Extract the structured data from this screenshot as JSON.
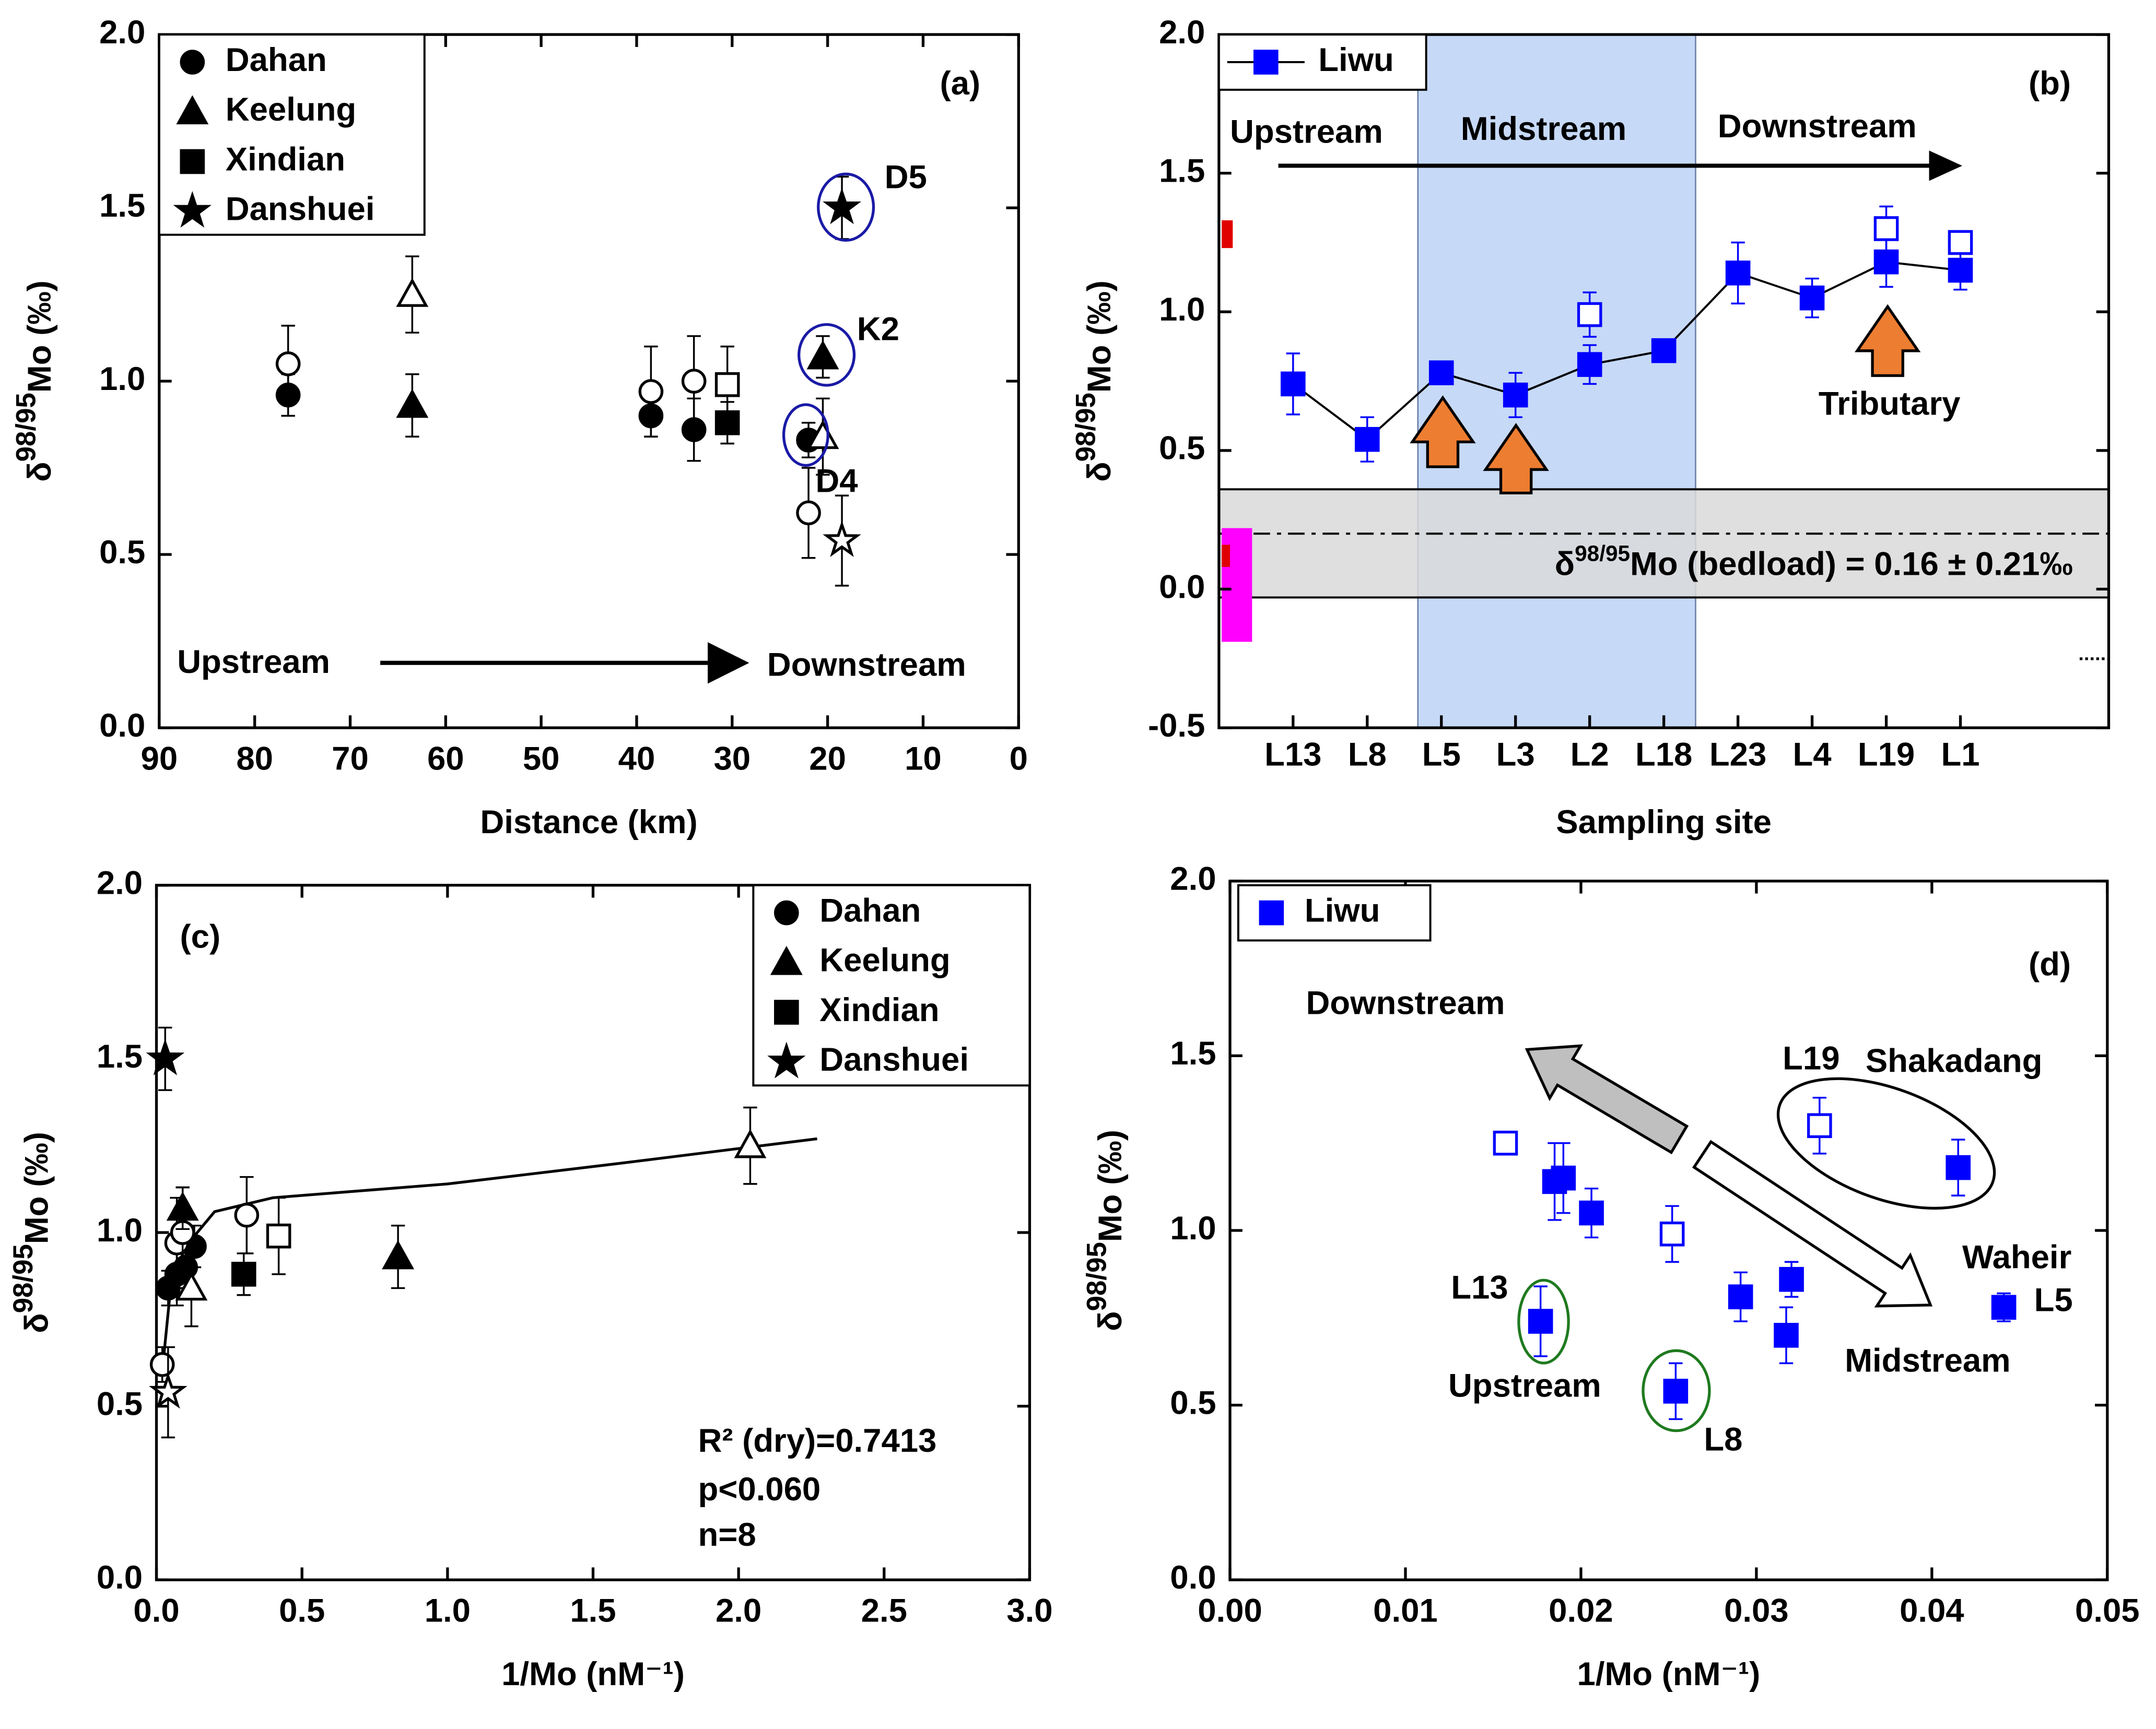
{
  "chart_data": [
    {
      "type": "scatter",
      "title": "(a)",
      "x_label": "Distance (km)",
      "y_label": {
        "prefix": "δ",
        "sup": "98/95",
        "main": "Mo (‰)"
      },
      "xlim": [
        90,
        0
      ],
      "xticks": [
        90,
        80,
        70,
        60,
        50,
        40,
        30,
        20,
        10,
        0
      ],
      "ylim": [
        0,
        2
      ],
      "yticks": [
        {
          "value": 0,
          "label": "0.0"
        },
        0.5,
        {
          "value": 1,
          "label": "1.0"
        },
        1.5,
        {
          "value": 2,
          "label": "2.0"
        }
      ],
      "legend": "upper left",
      "series": [
        {
          "name": "Dahan",
          "marker": "circle",
          "filled": true,
          "color": "#000000",
          "x": [
            76.5,
            38.5,
            34,
            22
          ],
          "values": [
            0.96,
            0.9,
            0.86,
            0.83
          ],
          "errors": [
            0.06,
            0.06,
            0.09,
            0.05
          ]
        },
        {
          "marker": "circle",
          "filled": false,
          "color": "#000000",
          "x": [
            76.5,
            38.5,
            34,
            22
          ],
          "values": [
            1.05,
            0.97,
            1.0,
            0.62
          ],
          "errors": [
            0.11,
            0.13,
            0.13,
            0.13
          ]
        },
        {
          "name": "Keelung",
          "marker": "triangle",
          "filled": true,
          "color": "#000000",
          "x": [
            63.5,
            20.5
          ],
          "values": [
            0.93,
            1.07
          ],
          "errors": [
            0.09,
            0.06
          ]
        },
        {
          "marker": "triangle",
          "filled": false,
          "color": "#000000",
          "x": [
            63.5,
            20.5
          ],
          "values": [
            1.25,
            0.84
          ],
          "errors": [
            0.11,
            0.11
          ]
        },
        {
          "name": "Xindian",
          "marker": "square",
          "filled": true,
          "color": "#000000",
          "x": [
            30.5
          ],
          "values": [
            0.88
          ],
          "errors": [
            0.06
          ]
        },
        {
          "marker": "square",
          "filled": false,
          "color": "#000000",
          "x": [
            30.5
          ],
          "values": [
            0.99
          ],
          "errors": [
            0.11
          ]
        },
        {
          "name": "Danshuei",
          "marker": "star",
          "filled": true,
          "color": "#000000",
          "x": [
            18.5
          ],
          "values": [
            1.5
          ],
          "errors": [
            0.09
          ]
        },
        {
          "marker": "star",
          "filled": false,
          "color": "#000000",
          "x": [
            18.5
          ],
          "values": [
            0.54
          ],
          "errors": [
            0.13
          ]
        }
      ],
      "annotations": [
        {
          "text": "(a)"
        },
        {
          "text": "D5"
        },
        {
          "text": "K2"
        },
        {
          "text": "D4"
        },
        {
          "text": "Upstream"
        },
        {
          "text": "Downstream"
        }
      ]
    },
    {
      "type": "line",
      "title": "(b)",
      "x_label": "Sampling site",
      "y_label": {
        "prefix": "δ",
        "sup": "98/95",
        "main": "Mo (‰)"
      },
      "categories": [
        "L13",
        "L8",
        "L5",
        "L3",
        "L2",
        "L18",
        "L23",
        "L4",
        "L19",
        "L1"
      ],
      "ylim": [
        -0.5,
        2
      ],
      "yticks": [
        -0.5,
        {
          "value": 0,
          "label": "0.0"
        },
        0.5,
        {
          "value": 1,
          "label": "1.0"
        },
        1.5,
        {
          "value": 2,
          "label": "2.0"
        }
      ],
      "legend": "upper left",
      "series": [
        {
          "name": "Liwu",
          "marker": "square",
          "filled": true,
          "color": "#0000ff",
          "line": true,
          "values": [
            0.74,
            0.54,
            0.78,
            0.7,
            0.81,
            0.86,
            1.14,
            1.05,
            1.18,
            1.15
          ],
          "errors": [
            0.11,
            0.08,
            0.04,
            0.08,
            0.07,
            0.03,
            0.11,
            0.07,
            0.09,
            0.07
          ]
        },
        {
          "marker": "square",
          "filled": false,
          "color": "#0000ff",
          "line": false,
          "values": [
            null,
            null,
            null,
            null,
            0.99,
            null,
            null,
            null,
            1.3,
            1.25
          ],
          "errors": [
            null,
            null,
            null,
            null,
            0.08,
            null,
            null,
            null,
            0.08,
            0.03
          ]
        }
      ],
      "bedload_band": [
        -0.03,
        0.36
      ],
      "bedload_line": 0.2,
      "reference_ranges": [
        {
          "color": "#e00000",
          "range": [
            1.23,
            1.33
          ]
        },
        {
          "color": "#ff00ff",
          "range": [
            -0.19,
            0.22
          ]
        },
        {
          "color": "#e00000",
          "range": [
            0.08,
            0.16
          ]
        }
      ],
      "annotations": [
        {
          "text": "(b)"
        },
        {
          "text": "Upstream"
        },
        {
          "text": "Midstream"
        },
        {
          "text": "Downstream"
        },
        {
          "text": "Tributary"
        },
        {
          "prefix": "δ",
          "sup": "98/95",
          "text": "Mo (bedload) = 0.16 ± 0.21‰"
        }
      ]
    },
    {
      "type": "scatter",
      "title": "(c)",
      "x_label": "1/Mo (nM⁻¹)",
      "y_label": {
        "prefix": "δ",
        "sup": "98/95",
        "main": "Mo (‰)"
      },
      "xlim": [
        0,
        3
      ],
      "xticks": [
        {
          "value": 0,
          "label": "0.0"
        },
        0.5,
        {
          "value": 1,
          "label": "1.0"
        },
        1.5,
        {
          "value": 2,
          "label": "2.0"
        },
        2.5,
        {
          "value": 3,
          "label": "3.0"
        }
      ],
      "ylim": [
        0,
        2
      ],
      "yticks": [
        {
          "value": 0,
          "label": "0.0"
        },
        0.5,
        {
          "value": 1,
          "label": "1.0"
        },
        1.5,
        {
          "value": 2,
          "label": "2.0"
        }
      ],
      "legend": "upper right",
      "series": [
        {
          "name": "Dahan",
          "marker": "circle",
          "filled": true,
          "color": "#000000",
          "x": [
            0.13,
            0.1,
            0.07,
            0.04
          ],
          "values": [
            0.96,
            0.9,
            0.88,
            0.84
          ],
          "errors": [
            0.06,
            0.06,
            0.09,
            0.05
          ]
        },
        {
          "marker": "circle",
          "filled": false,
          "color": "#000000",
          "x": [
            0.31,
            0.07,
            0.09,
            0.02
          ],
          "values": [
            1.05,
            0.97,
            1.0,
            0.62
          ],
          "errors": [
            0.11,
            0.13,
            0.13,
            0.05
          ]
        },
        {
          "name": "Keelung",
          "marker": "triangle",
          "filled": true,
          "color": "#000000",
          "x": [
            0.83,
            0.09
          ],
          "values": [
            0.93,
            1.07
          ],
          "errors": [
            0.09,
            0.06
          ]
        },
        {
          "marker": "triangle",
          "filled": false,
          "color": "#000000",
          "x": [
            2.04,
            0.12
          ],
          "values": [
            1.25,
            0.84
          ],
          "errors": [
            0.11,
            0.11
          ]
        },
        {
          "name": "Xindian",
          "marker": "square",
          "filled": true,
          "color": "#000000",
          "x": [
            0.3
          ],
          "values": [
            0.88
          ],
          "errors": [
            0.06
          ]
        },
        {
          "marker": "square",
          "filled": false,
          "color": "#000000",
          "x": [
            0.42
          ],
          "values": [
            0.99
          ],
          "errors": [
            0.11
          ]
        },
        {
          "name": "Danshuei",
          "marker": "star",
          "filled": true,
          "color": "#000000",
          "x": [
            0.03
          ],
          "values": [
            1.5
          ],
          "errors": [
            0.09
          ]
        },
        {
          "marker": "star",
          "filled": false,
          "color": "#000000",
          "x": [
            0.04
          ],
          "values": [
            0.54
          ],
          "errors": [
            0.13
          ]
        }
      ],
      "fit": {
        "x": [
          0.02,
          0.05,
          0.1,
          0.2,
          0.4,
          1.0,
          1.6,
          2.27
        ],
        "values": [
          0.6,
          0.85,
          0.96,
          1.06,
          1.1,
          1.14,
          1.2,
          1.27
        ]
      },
      "annotations": [
        {
          "text": "(c)"
        },
        {
          "text": "R² (dry)=0.7413"
        },
        {
          "text": "p<0.060"
        },
        {
          "text": "n=8"
        }
      ]
    },
    {
      "type": "scatter",
      "title": "(d)",
      "x_label": "1/Mo (nM⁻¹)",
      "y_label": {
        "prefix": "δ",
        "sup": "98/95",
        "main": "Mo (‰)"
      },
      "xlim": [
        0,
        0.05
      ],
      "xticks": [
        {
          "value": 0,
          "label": "0.00"
        },
        0.01,
        0.02,
        0.03,
        0.04,
        0.05
      ],
      "ylim": [
        0,
        2
      ],
      "yticks": [
        {
          "value": 0,
          "label": "0.0"
        },
        0.5,
        {
          "value": 1,
          "label": "1.0"
        },
        1.5,
        {
          "value": 2,
          "label": "2.0"
        }
      ],
      "legend": "upper left",
      "series": [
        {
          "name": "Liwu",
          "marker": "square",
          "filled": true,
          "color": "#0000ff",
          "x": [
            0.0177,
            0.0254,
            0.0441,
            0.0317,
            0.0291,
            0.032,
            0.0185,
            0.0206,
            0.0415,
            0.019
          ],
          "values": [
            0.74,
            0.54,
            0.78,
            0.7,
            0.81,
            0.86,
            1.14,
            1.05,
            1.18,
            1.15
          ],
          "errors": [
            0.1,
            0.08,
            0.04,
            0.08,
            0.07,
            0.05,
            0.11,
            0.07,
            0.08,
            0.1
          ]
        },
        {
          "marker": "square",
          "filled": false,
          "color": "#0000ff",
          "x": [
            0.0157,
            0.0336,
            0.0252
          ],
          "values": [
            1.25,
            1.3,
            0.99
          ],
          "errors": [
            0.03,
            0.08,
            0.08
          ]
        }
      ],
      "annotations": [
        {
          "text": "(d)"
        },
        {
          "text": "Downstream"
        },
        {
          "text": "L19"
        },
        {
          "text": "Shakadang"
        },
        {
          "text": "Waheir"
        },
        {
          "text": "L5"
        },
        {
          "text": "L13"
        },
        {
          "text": "Upstream",
          "color": "#1f7a1f"
        },
        {
          "text": "L8"
        },
        {
          "text": "Midstream"
        }
      ]
    }
  ]
}
